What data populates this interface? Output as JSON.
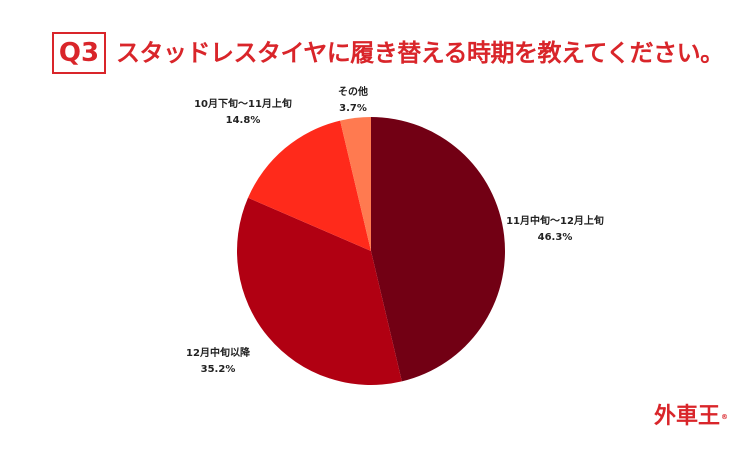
{
  "header": {
    "badge": "Q3",
    "question": "スタッドレスタイヤに履き替える時期を教えてください。"
  },
  "chart_data": {
    "type": "pie",
    "title": "スタッドレスタイヤに履き替える時期を教えてください。",
    "slices": [
      {
        "label": "11月中旬〜12月上旬",
        "value": 46.3,
        "value_text": "46.3%",
        "color": "#720014"
      },
      {
        "label": "12月中旬以降",
        "value": 35.2,
        "value_text": "35.2%",
        "color": "#b10012"
      },
      {
        "label": "10月下旬〜11月上旬",
        "value": 14.8,
        "value_text": "14.8%",
        "color": "#ff2a1b"
      },
      {
        "label": "その他",
        "value": 3.7,
        "value_text": "3.7%",
        "color": "#ff7a50"
      }
    ],
    "start_angle": "top (12 o'clock)",
    "direction": "clockwise",
    "legend": "none",
    "labels": "outside"
  },
  "brand": {
    "name": "外車王",
    "mark": "®",
    "color": "#d9252a"
  }
}
